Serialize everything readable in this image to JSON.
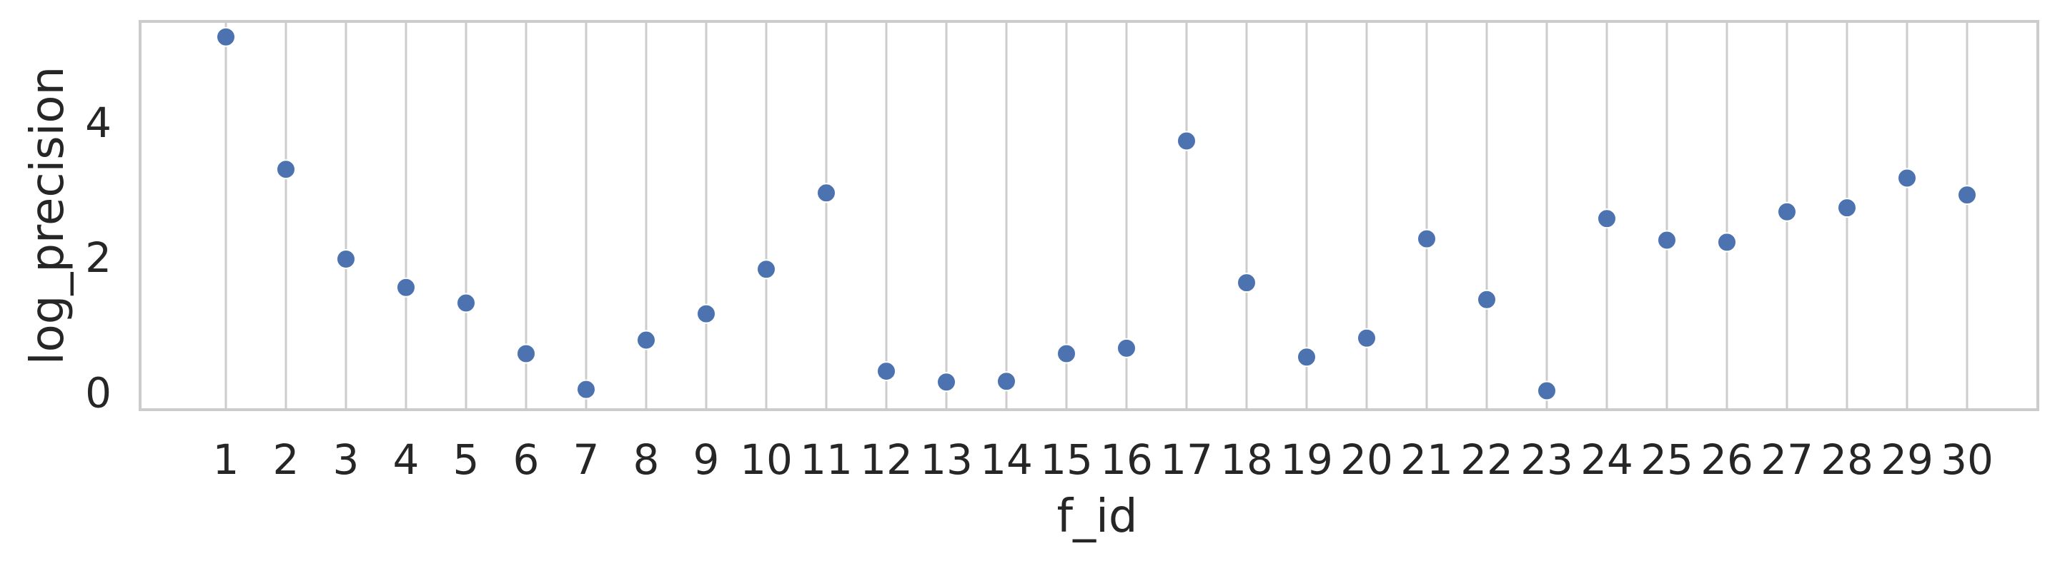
{
  "chart_data": {
    "type": "scatter",
    "title": "",
    "xlabel": "f_id",
    "ylabel": "log_precision",
    "x": [
      "1",
      "2",
      "3",
      "4",
      "5",
      "6",
      "7",
      "8",
      "9",
      "10",
      "11",
      "12",
      "13",
      "14",
      "15",
      "16",
      "17",
      "18",
      "19",
      "20",
      "21",
      "22",
      "23",
      "24",
      "25",
      "26",
      "27",
      "28",
      "29",
      "30"
    ],
    "y": [
      5.27,
      3.31,
      1.98,
      1.56,
      1.33,
      0.58,
      0.05,
      0.78,
      1.17,
      1.83,
      2.96,
      0.32,
      0.16,
      0.17,
      0.58,
      0.66,
      3.73,
      1.63,
      0.53,
      0.81,
      2.28,
      1.38,
      0.03,
      2.58,
      2.26,
      2.23,
      2.68,
      2.74,
      3.18,
      2.93
    ],
    "yticks": [
      0,
      2,
      4
    ],
    "ylim": [
      -0.25,
      5.5
    ],
    "grid": "vertical",
    "marker_color": "#4c72b0",
    "grid_color": "#cccccc",
    "frame_color": "#cccccc"
  }
}
